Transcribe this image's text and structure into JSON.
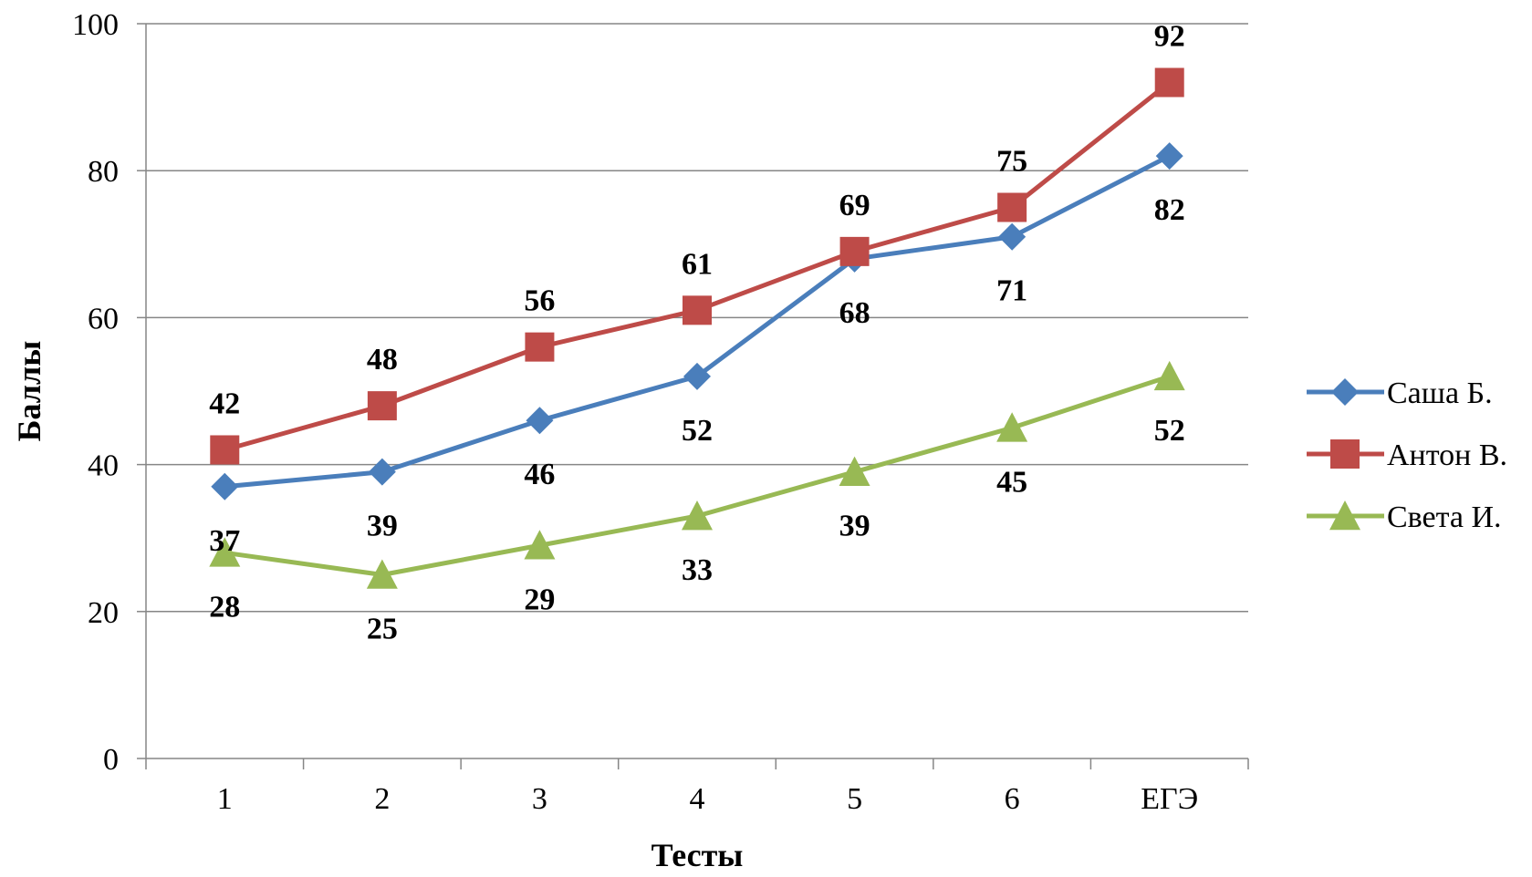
{
  "chart_data": {
    "type": "line",
    "title": "",
    "xlabel": "Тесты",
    "ylabel": "Баллы",
    "categories": [
      "1",
      "2",
      "3",
      "4",
      "5",
      "6",
      "ЕГЭ"
    ],
    "ylim": [
      0,
      100
    ],
    "yticks": [
      0,
      20,
      40,
      60,
      80,
      100
    ],
    "grid": true,
    "legend_position": "right",
    "series": [
      {
        "name": "Саша Б.",
        "values": [
          37,
          39,
          46,
          52,
          68,
          71,
          82
        ],
        "color": "#4a7ebb",
        "marker": "diamond"
      },
      {
        "name": "Антон В.",
        "values": [
          42,
          48,
          56,
          61,
          69,
          75,
          92
        ],
        "color": "#be4b48",
        "marker": "square"
      },
      {
        "name": "Света И.",
        "values": [
          28,
          25,
          29,
          33,
          39,
          45,
          52
        ],
        "color": "#98b954",
        "marker": "triangle"
      }
    ],
    "data_labels": true
  }
}
